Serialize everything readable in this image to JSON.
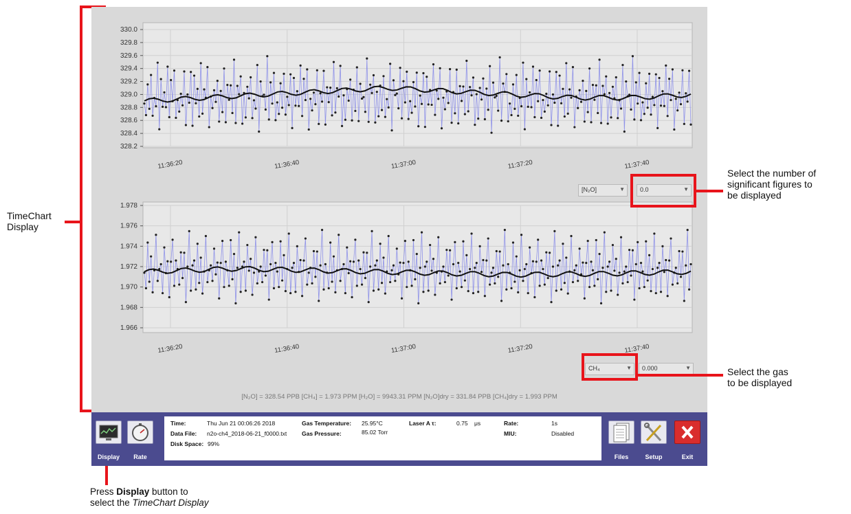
{
  "chart_data": [
    {
      "type": "scatter",
      "title": "",
      "y_ticks": [
        "330.0",
        "329.8",
        "329.6",
        "329.4",
        "329.2",
        "329.0",
        "328.8",
        "328.6",
        "328.4",
        "328.2"
      ],
      "ylim": [
        328.2,
        330.0
      ],
      "x_ticks": [
        "11:36:20",
        "11:36:40",
        "11:37:00",
        "11:37:20",
        "11:37:40"
      ],
      "series": [
        {
          "values": [
            328.95,
            328.7,
            329.1,
            328.85,
            329.3,
            328.6,
            329.0,
            328.8,
            329.4,
            328.5,
            329.2,
            328.9,
            329.05,
            328.75,
            329.5,
            328.65,
            329.15,
            328.95,
            329.35,
            328.55
          ]
        },
        {
          "values": [
            328.9,
            328.95,
            329.0,
            329.05,
            329.1,
            329.05,
            329.0,
            328.95,
            328.95,
            329.0
          ]
        }
      ],
      "grid": true,
      "selector_species": "[N₂O]",
      "selector_figures": "0.0"
    },
    {
      "type": "scatter",
      "title": "",
      "y_ticks": [
        "1.978",
        "1.976",
        "1.974",
        "1.972",
        "1.970",
        "1.968",
        "1.966"
      ],
      "ylim": [
        1.966,
        1.978
      ],
      "x_ticks": [
        "11:36:20",
        "11:36:40",
        "11:37:00",
        "11:37:20",
        "11:37:40"
      ],
      "series": [
        {
          "values": [
            1.972,
            1.97,
            1.974,
            1.971,
            1.973,
            1.969,
            1.972,
            1.975,
            1.97,
            1.972
          ]
        },
        {
          "values": [
            1.9715,
            1.9718,
            1.9716,
            1.9714,
            1.9712,
            1.9713,
            1.9715
          ]
        }
      ],
      "grid": true,
      "selector_species": "CH₄",
      "selector_figures": "0.000"
    }
  ],
  "readout": "[N₂O] = 328.54 PPB   [CH₄] = 1.973 PPM   [H₂O] = 9943.31 PPM   [N₂O]dry = 331.84 PPB   [CH₄]dry = 1.993 PPM",
  "toolbar": {
    "display_label": "Display",
    "rate_label": "Rate",
    "files_label": "Files",
    "setup_label": "Setup",
    "exit_label": "Exit"
  },
  "info": {
    "time_label": "Time:",
    "time_value": "Thu Jun 21 00:06:26 2018",
    "datafile_label": "Data File:",
    "datafile_value": "n2o-ch4_2018-06-21_f0000.txt",
    "disk_label": "Disk Space:",
    "disk_value": "99%",
    "gastemp_label": "Gas Temperature:",
    "gastemp_value": "25.95°C",
    "gaspress_label": "Gas Pressure:",
    "gaspress_value": "85.02 Torr",
    "laser_label": "Laser A τ:",
    "laser_value": "0.75",
    "laser_unit": "μs",
    "rate_label": "Rate:",
    "rate_value": "1s",
    "miu_label": "MIU:",
    "miu_value": "Disabled"
  },
  "annotations": {
    "timechart_line1": "TimeChart",
    "timechart_line2": "Display",
    "sigfig_line1": "Select the number of",
    "sigfig_line2": "significant figures to",
    "sigfig_line3": "be displayed",
    "gas_line1": "Select the gas",
    "gas_line2": "to be displayed",
    "press_pre": "Press ",
    "press_bold": "Display",
    "press_post": " button to",
    "select_pre": "select the ",
    "select_italic": "TimeChart Display"
  },
  "colors": {
    "annotation_red": "#e8141b",
    "toolbar_bg": "#4b4b8f",
    "trace_blue": "#8f92e8",
    "points": "#222222"
  }
}
